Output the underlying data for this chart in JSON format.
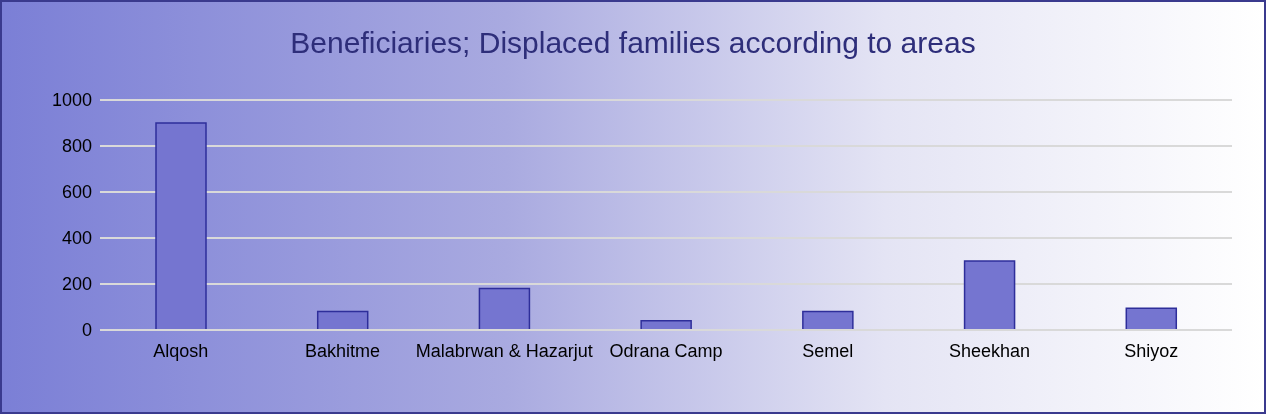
{
  "chart_data": {
    "type": "bar",
    "title": "Beneficiaries; Displaced families according to areas",
    "categories": [
      "Alqosh",
      "Bakhitme",
      "Malabrwan & Hazarjut",
      "Odrana Camp",
      "Semel",
      "Sheekhan",
      "Shiyoz"
    ],
    "values": [
      900,
      80,
      180,
      40,
      80,
      300,
      95
    ],
    "color": "#7575d0",
    "ylim": [
      0,
      1000
    ],
    "yticks": [
      0,
      200,
      400,
      600,
      800,
      1000
    ],
    "grid": "y"
  }
}
